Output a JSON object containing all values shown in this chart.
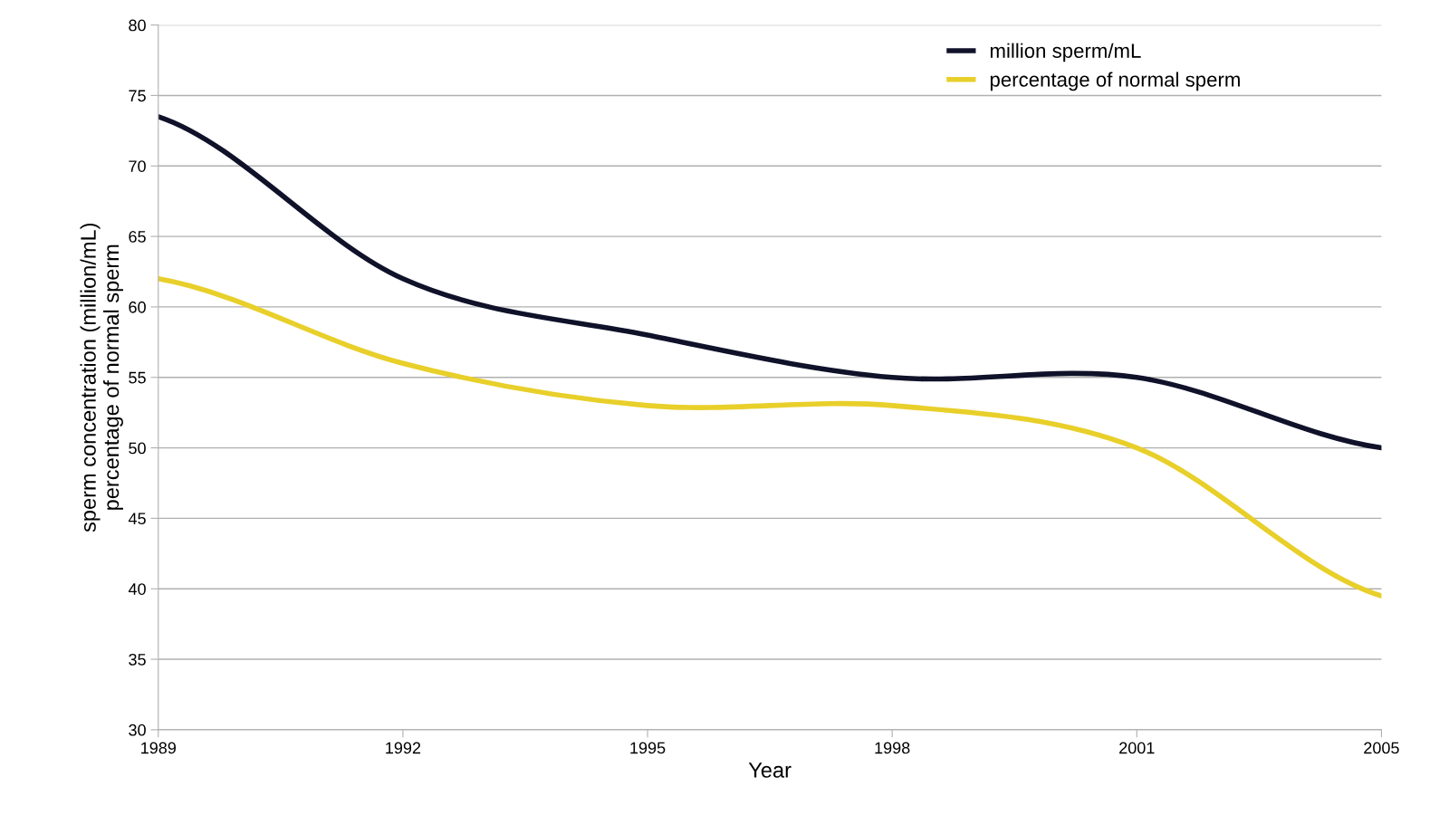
{
  "chart_data": {
    "type": "line",
    "xlabel": "Year",
    "ylabel": "sperm concentration (million/mL)\npercentage of normal sperm",
    "categories": [
      "1989",
      "1992",
      "1995",
      "1998",
      "2001",
      "2005"
    ],
    "series": [
      {
        "name": "million sperm/mL",
        "color": "#10122a",
        "values": [
          73.5,
          62,
          58,
          55,
          55,
          50
        ]
      },
      {
        "name": "percentage of normal sperm",
        "color": "#e8cf2a",
        "values": [
          62,
          56,
          53,
          53,
          50,
          39.5
        ]
      }
    ],
    "ylim": [
      30,
      80
    ],
    "yticks": [
      30,
      35,
      40,
      45,
      50,
      55,
      60,
      65,
      70,
      75,
      80
    ],
    "grid": "y",
    "legend": "top right",
    "marker": "none",
    "line_style": "solid"
  }
}
